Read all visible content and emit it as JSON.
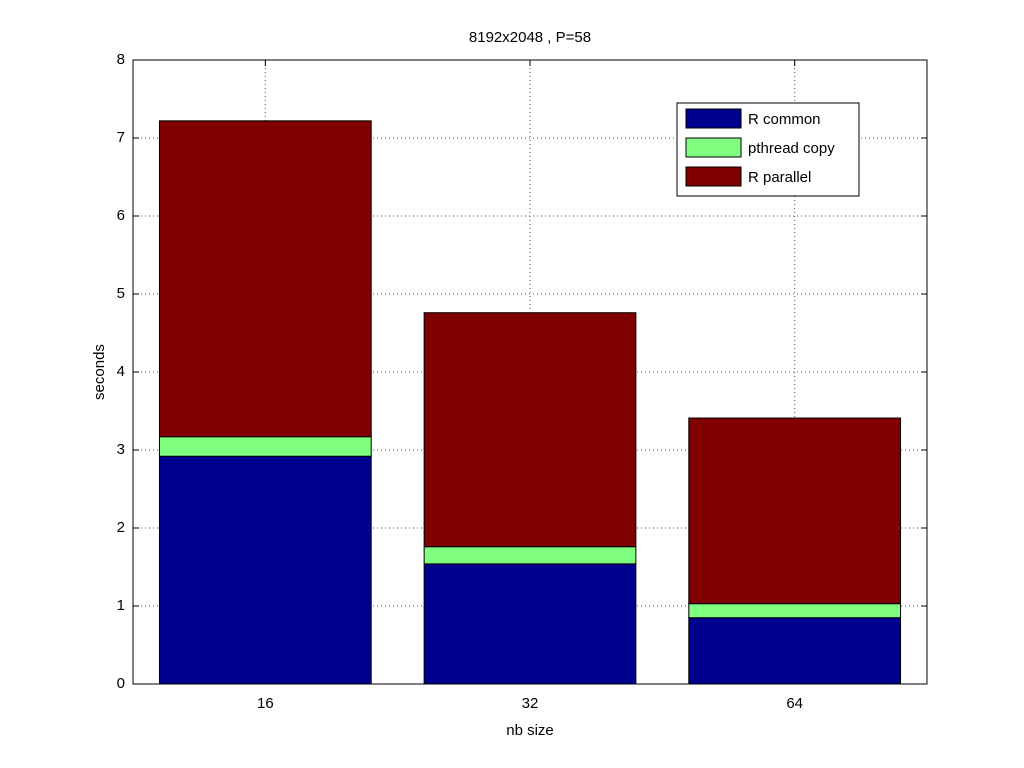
{
  "chart_data": {
    "type": "stacked-bar",
    "title": "8192x2048 , P=58",
    "x_label": "nb size",
    "y_label": "seconds",
    "categories": [
      "16",
      "32",
      "64"
    ],
    "series": [
      {
        "name": "R common",
        "color": "#00008f",
        "values": [
          2.92,
          1.54,
          0.85
        ]
      },
      {
        "name": "pthread copy",
        "color": "#80ff80",
        "values": [
          0.25,
          0.22,
          0.18
        ]
      },
      {
        "name": "R parallel",
        "color": "#800000",
        "values": [
          4.05,
          3.0,
          2.38
        ]
      }
    ],
    "ylim": [
      0,
      8
    ],
    "yticks": [
      0,
      1,
      2,
      3,
      4,
      5,
      6,
      7,
      8
    ],
    "grid": true,
    "legend": "top-right"
  }
}
